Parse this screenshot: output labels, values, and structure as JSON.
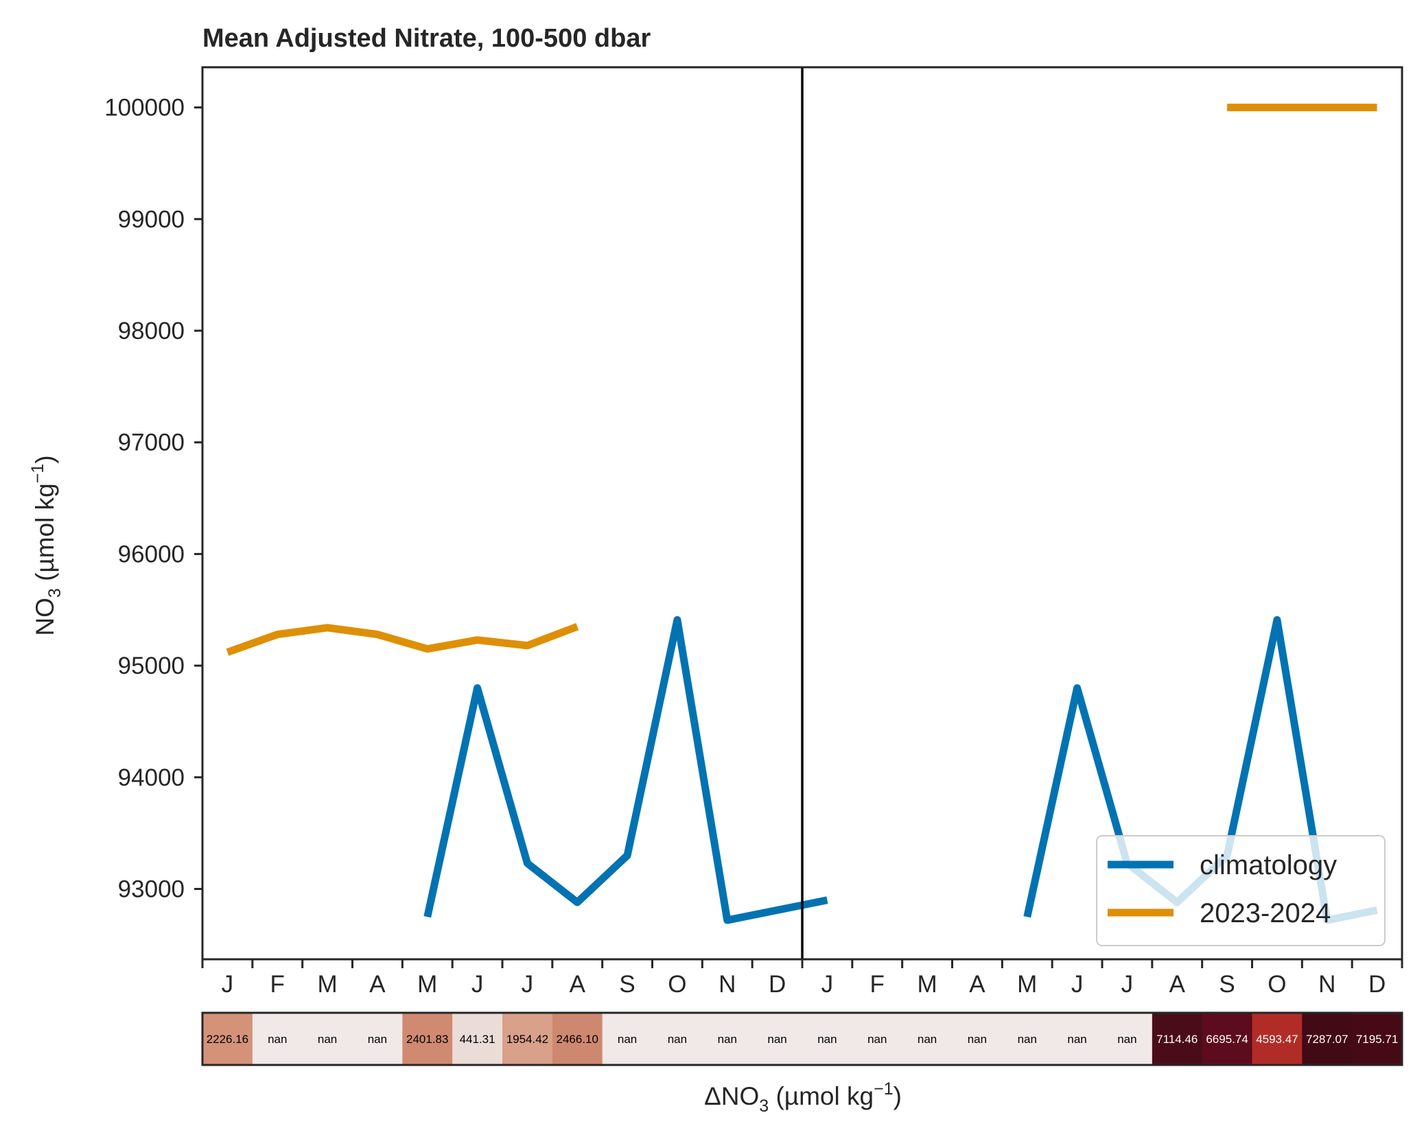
{
  "chart_data": {
    "type": "line",
    "title": "Mean Adjusted Nitrate, 100-500 dbar",
    "ylabel": {
      "main": "NO",
      "sub": "3",
      "rest": " (µmol kg",
      "sup": "−1",
      "close": ")"
    },
    "xlabel_bottom": {
      "pre": "ΔNO",
      "sub": "3",
      "rest": " (µmol kg",
      "sup": "−1",
      "close": ")"
    },
    "ylim": [
      92370,
      100360
    ],
    "yticks": [
      "93000",
      "94000",
      "95000",
      "96000",
      "97000",
      "98000",
      "99000",
      "100000"
    ],
    "x_tick_labels": [
      "J",
      "F",
      "M",
      "A",
      "M",
      "J",
      "J",
      "A",
      "S",
      "O",
      "N",
      "D",
      "J",
      "F",
      "M",
      "A",
      "M",
      "J",
      "J",
      "A",
      "S",
      "O",
      "N",
      "D"
    ],
    "series": [
      {
        "name": "climatology",
        "color": "#0173b2",
        "values": [
          null,
          null,
          null,
          null,
          92750,
          94800,
          93230,
          92880,
          93300,
          95410,
          92720,
          92810,
          92900,
          null,
          null,
          null,
          92750,
          94800,
          93230,
          92880,
          93300,
          95410,
          92720,
          92810
        ]
      },
      {
        "name": "2023-2024",
        "color": "#de8f05",
        "values": [
          95120,
          95280,
          95340,
          95280,
          95150,
          95230,
          95180,
          95350,
          null,
          null,
          null,
          null,
          null,
          null,
          null,
          null,
          null,
          null,
          null,
          null,
          100000,
          100000,
          100000,
          100000
        ]
      }
    ],
    "year_divider_after_index": 11,
    "legend": {
      "position": "lower-right",
      "labels": [
        "climatology",
        "2023-2024"
      ]
    },
    "anomaly_strip": {
      "labels": [
        "2226.16",
        "nan",
        "nan",
        "nan",
        "2401.83",
        "441.31",
        "1954.42",
        "2466.10",
        "nan",
        "nan",
        "nan",
        "nan",
        "nan",
        "nan",
        "nan",
        "nan",
        "nan",
        "nan",
        "nan",
        "7114.46",
        "6695.74",
        "4593.47",
        "7287.07",
        "7195.71"
      ],
      "colors": [
        "#d49279",
        "#f1e9e8",
        "#f1e9e8",
        "#f1e9e8",
        "#d08a71",
        "#eaddd8",
        "#d9a08a",
        "#cf8870",
        "#f1e9e8",
        "#f1e9e8",
        "#f1e9e8",
        "#f1e9e8",
        "#f1e9e8",
        "#f1e9e8",
        "#f1e9e8",
        "#f1e9e8",
        "#f1e9e8",
        "#f1e9e8",
        "#f1e9e8",
        "#4a0c18",
        "#5c0c1c",
        "#b22c27",
        "#420a15",
        "#450a16"
      ],
      "text_colors": [
        "#000000",
        "#000000",
        "#000000",
        "#000000",
        "#000000",
        "#000000",
        "#000000",
        "#000000",
        "#000000",
        "#000000",
        "#000000",
        "#000000",
        "#000000",
        "#000000",
        "#000000",
        "#000000",
        "#000000",
        "#000000",
        "#000000",
        "#ffffff",
        "#ffffff",
        "#ffffff",
        "#ffffff",
        "#ffffff"
      ]
    }
  }
}
